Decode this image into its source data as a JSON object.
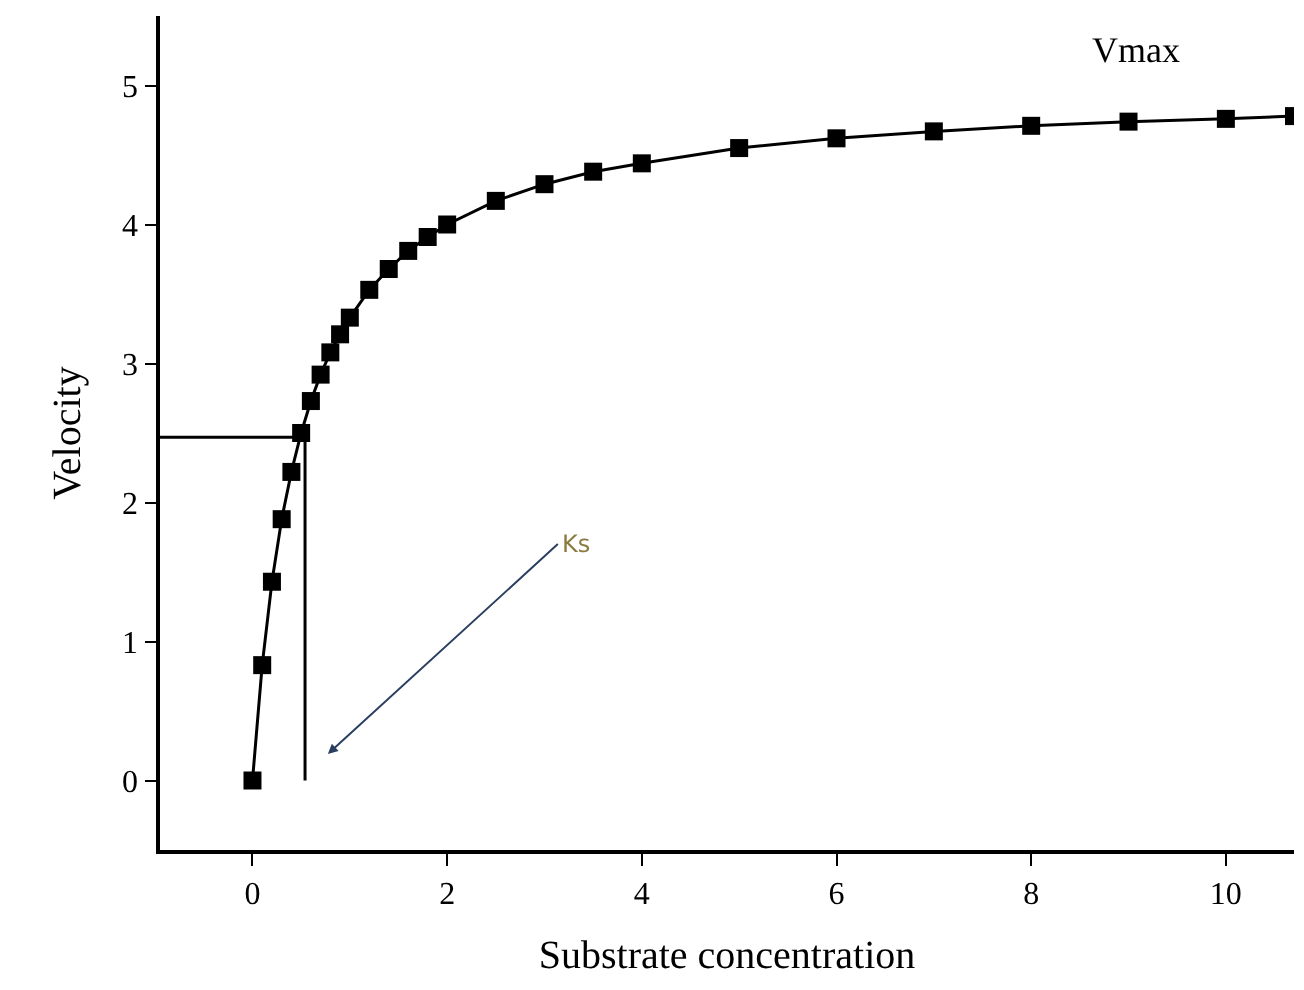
{
  "chart_data": {
    "type": "line",
    "xlabel": "Substrate concentration",
    "ylabel": "Velocity",
    "xlim": [
      -0.95,
      10.7
    ],
    "xticks": [
      0,
      2,
      4,
      6,
      8,
      10
    ],
    "ylim": [
      -0.5,
      5.5
    ],
    "yticks": [
      0,
      1,
      2,
      3,
      4,
      5
    ],
    "series": [
      {
        "color": "#000000",
        "marker": "square",
        "line_style": "solid",
        "x": [
          0,
          0.1,
          0.2,
          0.3,
          0.4,
          0.5,
          0.6,
          0.7,
          0.8,
          0.9,
          1.0,
          1.2,
          1.4,
          1.6,
          1.8,
          2.0,
          2.5,
          3,
          3.5,
          4,
          5,
          6,
          7,
          8,
          9,
          10,
          10.7
        ],
        "values": [
          0,
          0.83,
          1.43,
          1.88,
          2.22,
          2.5,
          2.73,
          2.92,
          3.08,
          3.21,
          3.33,
          3.53,
          3.68,
          3.81,
          3.91,
          4.0,
          4.17,
          4.29,
          4.38,
          4.44,
          4.55,
          4.62,
          4.67,
          4.71,
          4.74,
          4.76,
          4.78
        ]
      },
      {
        "color": "#000000",
        "marker": "none",
        "line_style": "solid",
        "x": [
          -0.95,
          0.54,
          0.54
        ],
        "values": [
          2.47,
          2.47,
          0
        ]
      }
    ],
    "annotations": [
      "Vmax",
      "Ks"
    ]
  }
}
